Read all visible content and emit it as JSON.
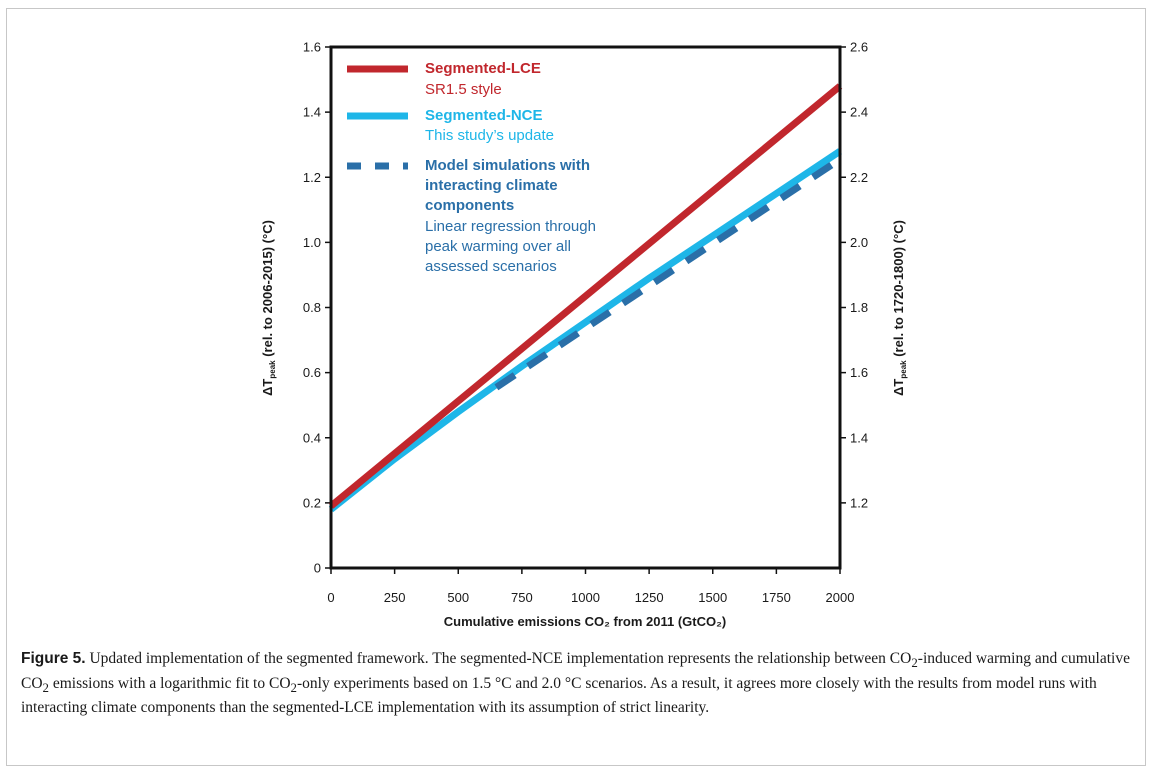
{
  "chart_data": {
    "type": "line",
    "x_range": [
      0,
      2000
    ],
    "y_range": [
      0,
      1.6
    ],
    "y2_range": [
      1.0,
      2.6
    ],
    "x_ticks": [
      0,
      250,
      500,
      750,
      1000,
      1250,
      1500,
      1750,
      2000
    ],
    "y_ticks": [
      0,
      0.2,
      0.4,
      0.6,
      0.8,
      1.0,
      1.2,
      1.4,
      1.6
    ],
    "y2_ticks": [
      1.2,
      1.4,
      1.6,
      1.8,
      2.0,
      2.2,
      2.4,
      2.6
    ],
    "xlabel": "Cumulative emissions CO₂ from 2011 (GtCO₂)",
    "ylabel_left": {
      "prefix": "ΔT",
      "sub": "peak",
      "suffix": " (rel. to 2006-2015) (°C)"
    },
    "ylabel_right": {
      "prefix": "ΔT",
      "sub": "peak",
      "suffix": " (rel. to 1720-1800) (°C)"
    },
    "series": [
      {
        "name": "Segmented-LCE",
        "description": "SR1.5 style",
        "color": "#c1272d",
        "style": "solid",
        "x": [
          0,
          2000
        ],
        "y": [
          0.19,
          1.48
        ]
      },
      {
        "name": "Segmented-NCE",
        "description": "This study’s update",
        "color": "#1eb6e8",
        "style": "solid",
        "x": [
          0,
          250,
          500,
          750,
          1000,
          1250,
          1500,
          1750,
          2000
        ],
        "y": [
          0.18,
          0.335,
          0.48,
          0.62,
          0.755,
          0.89,
          1.02,
          1.15,
          1.28
        ]
      },
      {
        "name": "Model simulations with interacting climate components",
        "description": "Linear regression through peak warming over all assessed scenarios",
        "color": "#2a6fa8",
        "style": "dashed",
        "x": [
          650,
          2000
        ],
        "y": [
          0.555,
          1.255
        ]
      }
    ],
    "legend": [
      {
        "title": "Segmented-LCE",
        "subtitle": "SR1.5 style",
        "color": "#c1272d",
        "style": "solid"
      },
      {
        "title": "Segmented-NCE",
        "subtitle": "This study’s update",
        "color": "#1eb6e8",
        "style": "solid"
      },
      {
        "title": "Model simulations with interacting climate components",
        "subtitle": "Linear regression through peak warming over all assessed scenarios",
        "color": "#2a6fa8",
        "style": "dashed"
      }
    ]
  },
  "legend_text": {
    "lce_title": "Segmented-LCE",
    "lce_sub": "SR1.5 style",
    "nce_title": "Segmented-NCE",
    "nce_sub": "This study’s update",
    "model_title_1": "Model simulations with",
    "model_title_2": "interacting climate",
    "model_title_3": "components",
    "model_sub_1": "Linear regression through",
    "model_sub_2": "peak warming over all",
    "model_sub_3": "assessed scenarios"
  },
  "caption": {
    "label": "Figure 5.",
    "text_1": " Updated implementation of the segmented framework. The segmented-NCE implementation represents the relationship between CO",
    "sub_1": "2",
    "text_2": "-induced warming and cumulative CO",
    "sub_2": "2",
    "text_3": " emissions with a logarithmic fit to CO",
    "sub_3": "2",
    "text_4": "-only experiments based on 1.5 °C and 2.0 °C scenarios. As a result, it agrees more closely with the results from model runs with interacting climate components than the segmented-LCE implementation with its assumption of strict linearity."
  }
}
